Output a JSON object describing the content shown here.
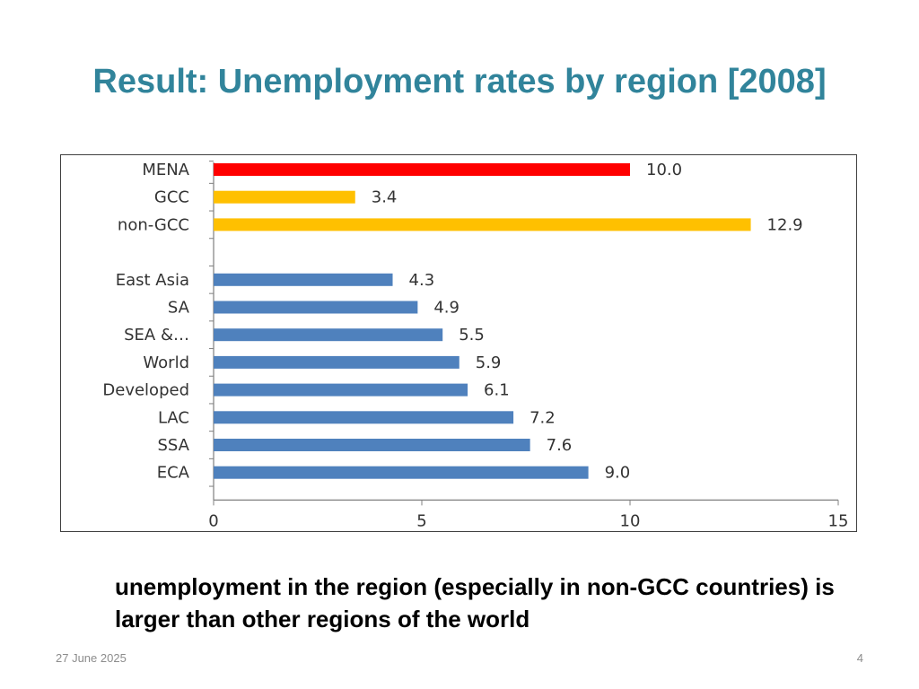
{
  "slide": {
    "title": "Result: Unemployment rates by region [2008]",
    "caption": "unemployment in the region (especially in non-GCC countries) is larger than other regions of the world",
    "date": "27 June 2025",
    "page_number": "4"
  },
  "chart_data": {
    "type": "bar",
    "orientation": "horizontal",
    "categories": [
      "MENA",
      "GCC",
      "non-GCC",
      "",
      "East Asia",
      "SA",
      "SEA &…",
      "World",
      "Developed",
      "LAC",
      "SSA",
      "ECA"
    ],
    "values": [
      10.0,
      3.4,
      12.9,
      null,
      4.3,
      4.9,
      5.5,
      5.9,
      6.1,
      7.2,
      7.6,
      9.0
    ],
    "data_labels": [
      "10.0",
      "3.4",
      "12.9",
      "",
      "4.3",
      "4.9",
      "5.5",
      "5.9",
      "6.1",
      "7.2",
      "7.6",
      "9.0"
    ],
    "bar_colors": [
      "#ff0000",
      "#ffc000",
      "#ffc000",
      "",
      "#4f81bd",
      "#4f81bd",
      "#4f81bd",
      "#4f81bd",
      "#4f81bd",
      "#4f81bd",
      "#4f81bd",
      "#4f81bd"
    ],
    "xlim": [
      0,
      15
    ],
    "x_ticks": [
      "0",
      "5",
      "10",
      "15"
    ],
    "title": "",
    "xlabel": "",
    "ylabel": "",
    "grid": false,
    "legend": "none"
  }
}
